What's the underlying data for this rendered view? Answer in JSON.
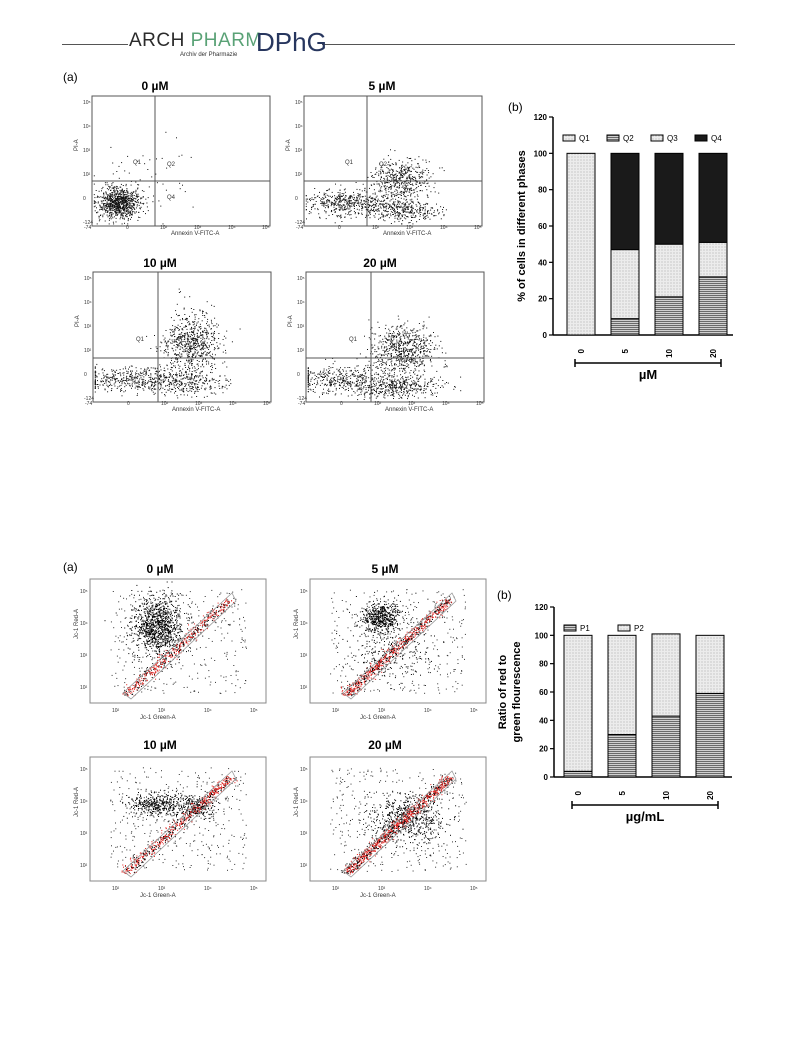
{
  "header": {
    "logo_arch": "ARCH",
    "logo_pharm": "PHARM",
    "logo_subtitle": "Archiv der Pharmazie",
    "logo_dphg": "DPhG",
    "colors": {
      "arch": "#2b2b2b",
      "pharm": "#5aa276",
      "dphg": "#27365e"
    }
  },
  "figure_top": {
    "panel_a_label": "(a)",
    "panel_b_label": "(b)",
    "plots": [
      {
        "title": "0 µM",
        "xlabel": "Annexin V-FITC-A",
        "ylabel": "PI-A",
        "quadrants": [
          "Q1",
          "Q2",
          "Q4"
        ]
      },
      {
        "title": "5 µM",
        "xlabel": "Annexin V-FITC-A",
        "ylabel": "PI-A",
        "quadrants": [
          "Q1",
          "Q2"
        ]
      },
      {
        "title": "10 µM",
        "xlabel": "Annexin V-FITC-A",
        "ylabel": "PI-A",
        "quadrants": [
          "Q1"
        ]
      },
      {
        "title": "20 µM",
        "xlabel": "Annexin V-FITC-A",
        "ylabel": "PI-A",
        "quadrants": [
          "Q1"
        ]
      }
    ],
    "x_ticks": [
      "-74",
      "0",
      "10²",
      "10³",
      "10⁴",
      "10⁵"
    ],
    "y_ticks": [
      "10⁵",
      "10⁴",
      "10³",
      "10²",
      "0",
      "-124"
    ]
  },
  "figure_bottom": {
    "panel_a_label": "(a)",
    "panel_b_label": "(b)",
    "plots": [
      {
        "title": "0 µM",
        "xlabel": "Jc-1 Green-A",
        "ylabel": "Jc-1 Red-A"
      },
      {
        "title": "5 µM",
        "xlabel": "Jc-1 Green-A",
        "ylabel": "Jc-1 Red-A"
      },
      {
        "title": "10 µM",
        "xlabel": "Jc-1 Green-A",
        "ylabel": "Jc-1 Red-A"
      },
      {
        "title": "20 µM",
        "xlabel": "Jc-1 Green-A",
        "ylabel": "Jc-1 Red-A"
      }
    ],
    "x_ticks": [
      "10²",
      "10³",
      "10⁴",
      "10⁵"
    ],
    "y_ticks": [
      "10⁵",
      "10⁴",
      "10³",
      "10²"
    ]
  },
  "chart_data": [
    {
      "type": "bar",
      "stacked": true,
      "categories": [
        "0",
        "5",
        "10",
        "20"
      ],
      "series": [
        {
          "name": "Q1",
          "values": [
            100,
            0,
            0,
            0
          ],
          "pattern": "dots"
        },
        {
          "name": "Q2",
          "values": [
            0,
            9,
            21,
            32
          ],
          "pattern": "hlines"
        },
        {
          "name": "Q3",
          "values": [
            0,
            38,
            29,
            19
          ],
          "pattern": "dots"
        },
        {
          "name": "Q4",
          "values": [
            0,
            53,
            50,
            49
          ],
          "pattern": "solid"
        }
      ],
      "legend_labels": [
        "Q1",
        "Q2",
        "Q3",
        "Q4"
      ],
      "xlabel": "µM",
      "ylabel": "% of cells in different phases",
      "ylim": [
        0,
        120
      ],
      "yticks": [
        "0",
        "20",
        "40",
        "60",
        "80",
        "100",
        "120"
      ],
      "legend": "top"
    },
    {
      "type": "bar",
      "stacked": true,
      "categories": [
        "0",
        "5",
        "10",
        "20"
      ],
      "series": [
        {
          "name": "P1",
          "values": [
            4,
            30,
            43,
            59
          ],
          "pattern": "hlines"
        },
        {
          "name": "P2",
          "values": [
            96,
            70,
            58,
            41
          ],
          "pattern": "dots"
        }
      ],
      "legend_labels": [
        "P1",
        "P2"
      ],
      "xlabel": "µg/mL",
      "ylabel": "Ratio of red to green flourescence",
      "ylabel_lines": [
        "Ratio of red to",
        "green flourescence"
      ],
      "ylim": [
        0,
        120
      ],
      "yticks": [
        "0",
        "20",
        "40",
        "60",
        "80",
        "100",
        "120"
      ],
      "legend": "top"
    }
  ]
}
